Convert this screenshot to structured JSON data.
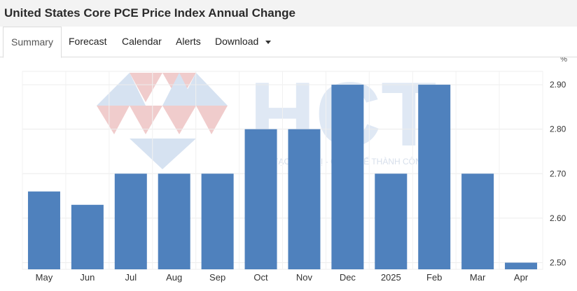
{
  "header": {
    "title": "United States Core PCE Price Index Annual Change"
  },
  "tabs": [
    {
      "label": "Summary",
      "active": true
    },
    {
      "label": "Forecast"
    },
    {
      "label": "Calendar"
    },
    {
      "label": "Alerts"
    },
    {
      "label": "Download",
      "has_dropdown": true
    }
  ],
  "watermark": {
    "logo_text": "HCT",
    "tagline": "KIẾN TẠO GIÁ TRỊ - CHẠM ĐẾ THÀNH CÔNG"
  },
  "chart_data": {
    "type": "bar",
    "categories": [
      "May",
      "Jun",
      "Jul",
      "Aug",
      "Sep",
      "Oct",
      "Nov",
      "Dec",
      "2025",
      "Feb",
      "Mar",
      "Apr"
    ],
    "values": [
      2.66,
      2.63,
      2.7,
      2.7,
      2.7,
      2.8,
      2.8,
      2.9,
      2.7,
      2.9,
      2.7,
      2.5
    ],
    "unit": "%",
    "ylim": [
      2.485,
      2.93
    ],
    "yticks": [
      "2.90",
      "2.80",
      "2.70",
      "2.60",
      "2.50"
    ],
    "bar_color": "#4f81bd",
    "grid": true,
    "title": "",
    "xlabel": "",
    "ylabel": ""
  }
}
